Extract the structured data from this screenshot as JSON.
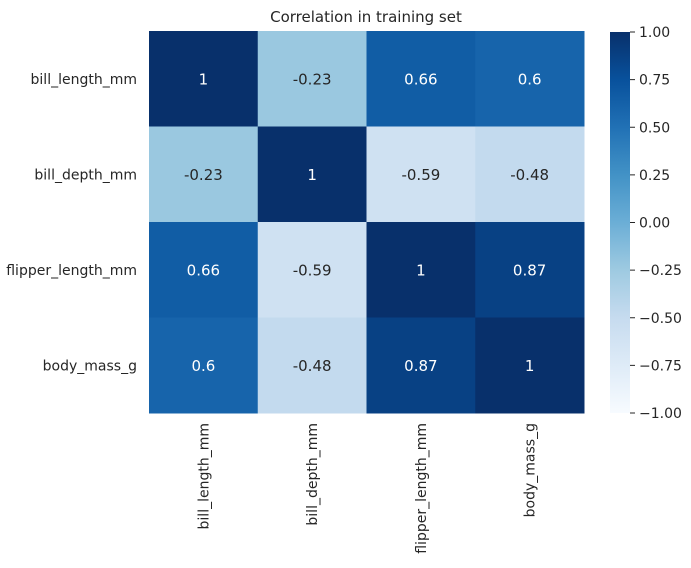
{
  "chart_data": {
    "type": "heatmap",
    "title": "Correlation in training set",
    "xlabel": "",
    "ylabel": "",
    "x_categories": [
      "bill_length_mm",
      "bill_depth_mm",
      "flipper_length_mm",
      "body_mass_g"
    ],
    "y_categories": [
      "bill_length_mm",
      "bill_depth_mm",
      "flipper_length_mm",
      "body_mass_g"
    ],
    "values": [
      [
        1,
        -0.23,
        0.66,
        0.6
      ],
      [
        -0.23,
        1,
        -0.59,
        -0.48
      ],
      [
        0.66,
        -0.59,
        1,
        0.87
      ],
      [
        0.6,
        -0.48,
        0.87,
        1
      ]
    ],
    "annotations": [
      [
        "1",
        "-0.23",
        "0.66",
        "0.6"
      ],
      [
        "-0.23",
        "1",
        "-0.59",
        "-0.48"
      ],
      [
        "0.66",
        "-0.59",
        "1",
        "0.87"
      ],
      [
        "0.6",
        "-0.48",
        "0.87",
        "1"
      ]
    ],
    "colormap": "Blues",
    "colors": {
      "low": "#f7fbff",
      "high": "#08306b",
      "annotation_dark": "#262626",
      "annotation_light": "#ffffff"
    },
    "vmin": -1,
    "vmax": 1,
    "colorbar_ticks": [
      1.0,
      0.75,
      0.5,
      0.25,
      0.0,
      -0.25,
      -0.5,
      -0.75,
      -1.0
    ],
    "colorbar_tick_labels": [
      "1.00",
      "0.75",
      "0.50",
      "0.25",
      "0.00",
      "−0.25",
      "−0.50",
      "−0.75",
      "−1.00"
    ],
    "x_tick_rotation": "vertical",
    "grid": false
  }
}
